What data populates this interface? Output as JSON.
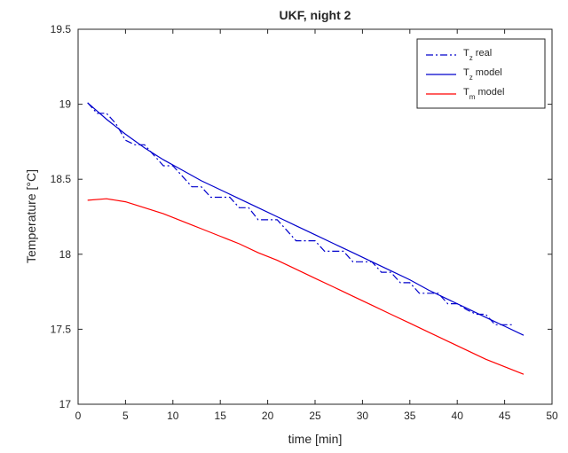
{
  "chart_data": {
    "type": "line",
    "title": "UKF, night 2",
    "xlabel": "time [min]",
    "ylabel": "Temperature [°C]",
    "xlim": [
      0,
      50
    ],
    "ylim": [
      17,
      19.5
    ],
    "xticks": [
      0,
      5,
      10,
      15,
      20,
      25,
      30,
      35,
      40,
      45,
      50
    ],
    "yticks": [
      17,
      17.5,
      18,
      18.5,
      19,
      19.5
    ],
    "grid": false,
    "legend_position": "top-right",
    "series": [
      {
        "name_main": "T",
        "name_sub": "z",
        "name_tail": "real",
        "color": "#0000cc",
        "dash": "dash-dot",
        "x": [
          1,
          2,
          3,
          4,
          5,
          6,
          7,
          8,
          9,
          10,
          11,
          12,
          13,
          14,
          15,
          16,
          17,
          18,
          19,
          20,
          21,
          22,
          23,
          24,
          25,
          26,
          27,
          28,
          29,
          30,
          31,
          32,
          33,
          34,
          35,
          36,
          37,
          38,
          39,
          40,
          41,
          42,
          43,
          44,
          45,
          46
        ],
        "y": [
          19.01,
          18.94,
          18.94,
          18.87,
          18.76,
          18.73,
          18.73,
          18.66,
          18.59,
          18.59,
          18.52,
          18.45,
          18.45,
          18.38,
          18.38,
          18.38,
          18.31,
          18.31,
          18.23,
          18.23,
          18.23,
          18.16,
          18.09,
          18.09,
          18.09,
          18.02,
          18.02,
          18.02,
          17.95,
          17.95,
          17.95,
          17.88,
          17.88,
          17.81,
          17.81,
          17.74,
          17.74,
          17.74,
          17.67,
          17.67,
          17.63,
          17.6,
          17.6,
          17.53,
          17.53,
          17.53
        ]
      },
      {
        "name_main": "T",
        "name_sub": "z",
        "name_tail": "model",
        "color": "#0000cc",
        "dash": "solid",
        "x": [
          1,
          3,
          5,
          7,
          9,
          11,
          13,
          15,
          17,
          19,
          21,
          23,
          25,
          27,
          29,
          31,
          33,
          35,
          37,
          39,
          41,
          43,
          45,
          47
        ],
        "y": [
          19.01,
          18.9,
          18.8,
          18.71,
          18.63,
          18.56,
          18.49,
          18.43,
          18.37,
          18.31,
          18.25,
          18.19,
          18.13,
          18.07,
          18.01,
          17.95,
          17.89,
          17.83,
          17.76,
          17.7,
          17.64,
          17.58,
          17.52,
          17.46
        ]
      },
      {
        "name_main": "T",
        "name_sub": "m",
        "name_tail": "model",
        "color": "#ff0000",
        "dash": "solid",
        "x": [
          1,
          3,
          5,
          7,
          9,
          11,
          13,
          15,
          17,
          19,
          21,
          23,
          25,
          27,
          29,
          31,
          33,
          35,
          37,
          39,
          41,
          43,
          45,
          47
        ],
        "y": [
          18.36,
          18.37,
          18.35,
          18.31,
          18.27,
          18.22,
          18.17,
          18.12,
          18.07,
          18.01,
          17.96,
          17.9,
          17.84,
          17.78,
          17.72,
          17.66,
          17.6,
          17.54,
          17.48,
          17.42,
          17.36,
          17.3,
          17.25,
          17.2
        ]
      }
    ]
  }
}
